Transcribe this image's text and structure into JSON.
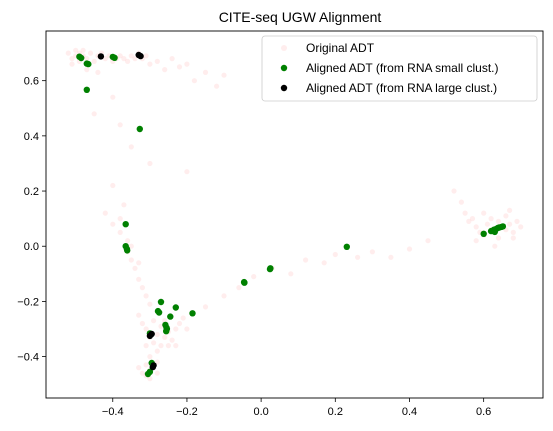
{
  "chart_data": {
    "type": "scatter",
    "title": "CITE-seq UGW Alignment",
    "xlabel": "",
    "ylabel": "",
    "xlim": [
      -0.58,
      0.76
    ],
    "ylim": [
      -0.55,
      0.78
    ],
    "x_ticks": [
      -0.4,
      -0.2,
      0.0,
      0.2,
      0.4,
      0.6
    ],
    "x_tick_labels": [
      "−0.4",
      "−0.2",
      "0.0",
      "0.2",
      "0.4",
      "0.6"
    ],
    "y_ticks": [
      -0.4,
      -0.2,
      0.0,
      0.2,
      0.4,
      0.6
    ],
    "y_tick_labels": [
      "−0.4",
      "−0.2",
      "0.0",
      "0.2",
      "0.4",
      "0.6"
    ],
    "grid": false,
    "legend_position": "top-right",
    "series": [
      {
        "name": "Original ADT",
        "color": "#ff6b6b",
        "points": [
          [
            -0.52,
            0.7
          ],
          [
            -0.51,
            0.68
          ],
          [
            -0.5,
            0.71
          ],
          [
            -0.5,
            0.69
          ],
          [
            -0.49,
            0.7
          ],
          [
            -0.49,
            0.67
          ],
          [
            -0.48,
            0.71
          ],
          [
            -0.48,
            0.69
          ],
          [
            -0.47,
            0.68
          ],
          [
            -0.46,
            0.7
          ],
          [
            -0.45,
            0.67
          ],
          [
            -0.44,
            0.69
          ],
          [
            -0.43,
            0.7
          ],
          [
            -0.42,
            0.68
          ],
          [
            -0.41,
            0.69
          ],
          [
            -0.4,
            0.67
          ],
          [
            -0.39,
            0.68
          ],
          [
            -0.38,
            0.69
          ],
          [
            -0.37,
            0.68
          ],
          [
            -0.36,
            0.67
          ],
          [
            -0.35,
            0.69
          ],
          [
            -0.34,
            0.68
          ],
          [
            -0.33,
            0.7
          ],
          [
            -0.32,
            0.68
          ],
          [
            -0.31,
            0.69
          ],
          [
            -0.3,
            0.66
          ],
          [
            -0.28,
            0.67
          ],
          [
            -0.26,
            0.64
          ],
          [
            -0.24,
            0.68
          ],
          [
            -0.22,
            0.65
          ],
          [
            -0.2,
            0.66
          ],
          [
            -0.18,
            0.6
          ],
          [
            -0.15,
            0.63
          ],
          [
            -0.12,
            0.58
          ],
          [
            -0.1,
            0.62
          ],
          [
            -0.51,
            0.66
          ],
          [
            -0.47,
            0.64
          ],
          [
            -0.44,
            0.63
          ],
          [
            -0.4,
            0.54
          ],
          [
            -0.45,
            0.48
          ],
          [
            -0.38,
            0.44
          ],
          [
            -0.35,
            0.36
          ],
          [
            -0.3,
            0.3
          ],
          [
            -0.2,
            0.27
          ],
          [
            -0.4,
            0.22
          ],
          [
            -0.42,
            0.12
          ],
          [
            -0.4,
            0.08
          ],
          [
            -0.38,
            0.05
          ],
          [
            -0.36,
            0.02
          ],
          [
            -0.36,
            -0.02
          ],
          [
            -0.35,
            -0.05
          ],
          [
            -0.34,
            -0.08
          ],
          [
            -0.33,
            -0.12
          ],
          [
            -0.32,
            -0.15
          ],
          [
            -0.31,
            -0.18
          ],
          [
            -0.3,
            -0.21
          ],
          [
            -0.38,
            0.1
          ],
          [
            -0.37,
            0.15
          ],
          [
            -0.35,
            0.0
          ],
          [
            -0.33,
            -0.06
          ],
          [
            -0.33,
            -0.25
          ],
          [
            -0.32,
            -0.28
          ],
          [
            -0.31,
            -0.3
          ],
          [
            -0.3,
            -0.33
          ],
          [
            -0.29,
            -0.35
          ],
          [
            -0.28,
            -0.32
          ],
          [
            -0.27,
            -0.29
          ],
          [
            -0.26,
            -0.27
          ],
          [
            -0.25,
            -0.31
          ],
          [
            -0.24,
            -0.34
          ],
          [
            -0.23,
            -0.3
          ],
          [
            -0.22,
            -0.28
          ],
          [
            -0.21,
            -0.26
          ],
          [
            -0.2,
            -0.3
          ],
          [
            -0.29,
            -0.27
          ],
          [
            -0.27,
            -0.36
          ],
          [
            -0.26,
            -0.33
          ],
          [
            -0.25,
            -0.36
          ],
          [
            -0.23,
            -0.36
          ],
          [
            -0.31,
            -0.36
          ],
          [
            -0.28,
            -0.38
          ],
          [
            -0.3,
            -0.4
          ],
          [
            -0.28,
            -0.42
          ],
          [
            -0.33,
            -0.44
          ],
          [
            -0.32,
            -0.46
          ],
          [
            -0.31,
            -0.47
          ],
          [
            -0.3,
            -0.45
          ],
          [
            -0.29,
            -0.44
          ],
          [
            -0.28,
            -0.46
          ],
          [
            -0.31,
            -0.43
          ],
          [
            -0.3,
            -0.48
          ],
          [
            -0.15,
            -0.22
          ],
          [
            -0.1,
            -0.18
          ],
          [
            -0.06,
            -0.15
          ],
          [
            -0.02,
            -0.11
          ],
          [
            0.03,
            -0.08
          ],
          [
            0.08,
            -0.1
          ],
          [
            0.12,
            -0.05
          ],
          [
            0.17,
            -0.06
          ],
          [
            0.2,
            -0.03
          ],
          [
            0.26,
            -0.04
          ],
          [
            0.3,
            -0.02
          ],
          [
            0.35,
            -0.04
          ],
          [
            0.4,
            -0.01
          ],
          [
            0.45,
            0.02
          ],
          [
            0.52,
            0.2
          ],
          [
            0.54,
            0.16
          ],
          [
            0.55,
            0.12
          ],
          [
            0.56,
            0.09
          ],
          [
            0.57,
            0.1
          ],
          [
            0.58,
            0.07
          ],
          [
            0.59,
            0.05
          ],
          [
            0.6,
            0.04
          ],
          [
            0.61,
            0.08
          ],
          [
            0.62,
            0.06
          ],
          [
            0.63,
            0.05
          ],
          [
            0.64,
            0.09
          ],
          [
            0.65,
            0.07
          ],
          [
            0.66,
            0.06
          ],
          [
            0.67,
            0.08
          ],
          [
            0.68,
            0.05
          ],
          [
            0.69,
            0.09
          ],
          [
            0.7,
            0.07
          ],
          [
            0.64,
            0.03
          ],
          [
            0.62,
            0.1
          ],
          [
            0.66,
            0.11
          ],
          [
            0.68,
            0.03
          ],
          [
            0.6,
            0.12
          ],
          [
            0.63,
            0.0
          ],
          [
            0.58,
            0.02
          ],
          [
            0.67,
            0.13
          ]
        ]
      },
      {
        "name": "Aligned ADT (from RNA small clust.)",
        "color": "#008000",
        "points": [
          [
            -0.49,
            0.687
          ],
          [
            -0.485,
            0.682
          ],
          [
            -0.47,
            0.662
          ],
          [
            -0.466,
            0.66
          ],
          [
            -0.4,
            0.686
          ],
          [
            -0.395,
            0.683
          ],
          [
            -0.47,
            0.567
          ],
          [
            -0.327,
            0.425
          ],
          [
            -0.365,
            0.08
          ],
          [
            -0.365,
            0.0
          ],
          [
            -0.362,
            -0.01
          ],
          [
            -0.361,
            -0.015
          ],
          [
            0.231,
            -0.002
          ],
          [
            0.025,
            -0.08
          ],
          [
            0.024,
            -0.083
          ],
          [
            -0.045,
            -0.132
          ],
          [
            -0.046,
            -0.13
          ],
          [
            0.6,
            0.045
          ],
          [
            0.62,
            0.055
          ],
          [
            0.628,
            0.06
          ],
          [
            0.633,
            0.062
          ],
          [
            0.638,
            0.066
          ],
          [
            0.642,
            0.068
          ],
          [
            0.648,
            0.07
          ],
          [
            0.652,
            0.072
          ],
          [
            0.63,
            0.052
          ],
          [
            -0.27,
            -0.202
          ],
          [
            -0.23,
            -0.222
          ],
          [
            -0.185,
            -0.243
          ],
          [
            -0.245,
            -0.255
          ],
          [
            -0.278,
            -0.235
          ],
          [
            -0.275,
            -0.24
          ],
          [
            -0.258,
            -0.285
          ],
          [
            -0.255,
            -0.295
          ],
          [
            -0.254,
            -0.3
          ],
          [
            -0.256,
            -0.308
          ],
          [
            -0.3,
            -0.316
          ],
          [
            -0.295,
            -0.423
          ],
          [
            -0.3,
            -0.455
          ],
          [
            -0.305,
            -0.463
          ]
        ]
      },
      {
        "name": "Aligned ADT (from RNA large clust.)",
        "color": "#000000",
        "points": [
          [
            -0.432,
            0.688
          ],
          [
            -0.33,
            0.693
          ],
          [
            -0.325,
            0.689
          ],
          [
            -0.3,
            -0.325
          ],
          [
            -0.295,
            -0.318
          ],
          [
            -0.292,
            -0.438
          ],
          [
            -0.29,
            -0.432
          ]
        ]
      }
    ]
  }
}
